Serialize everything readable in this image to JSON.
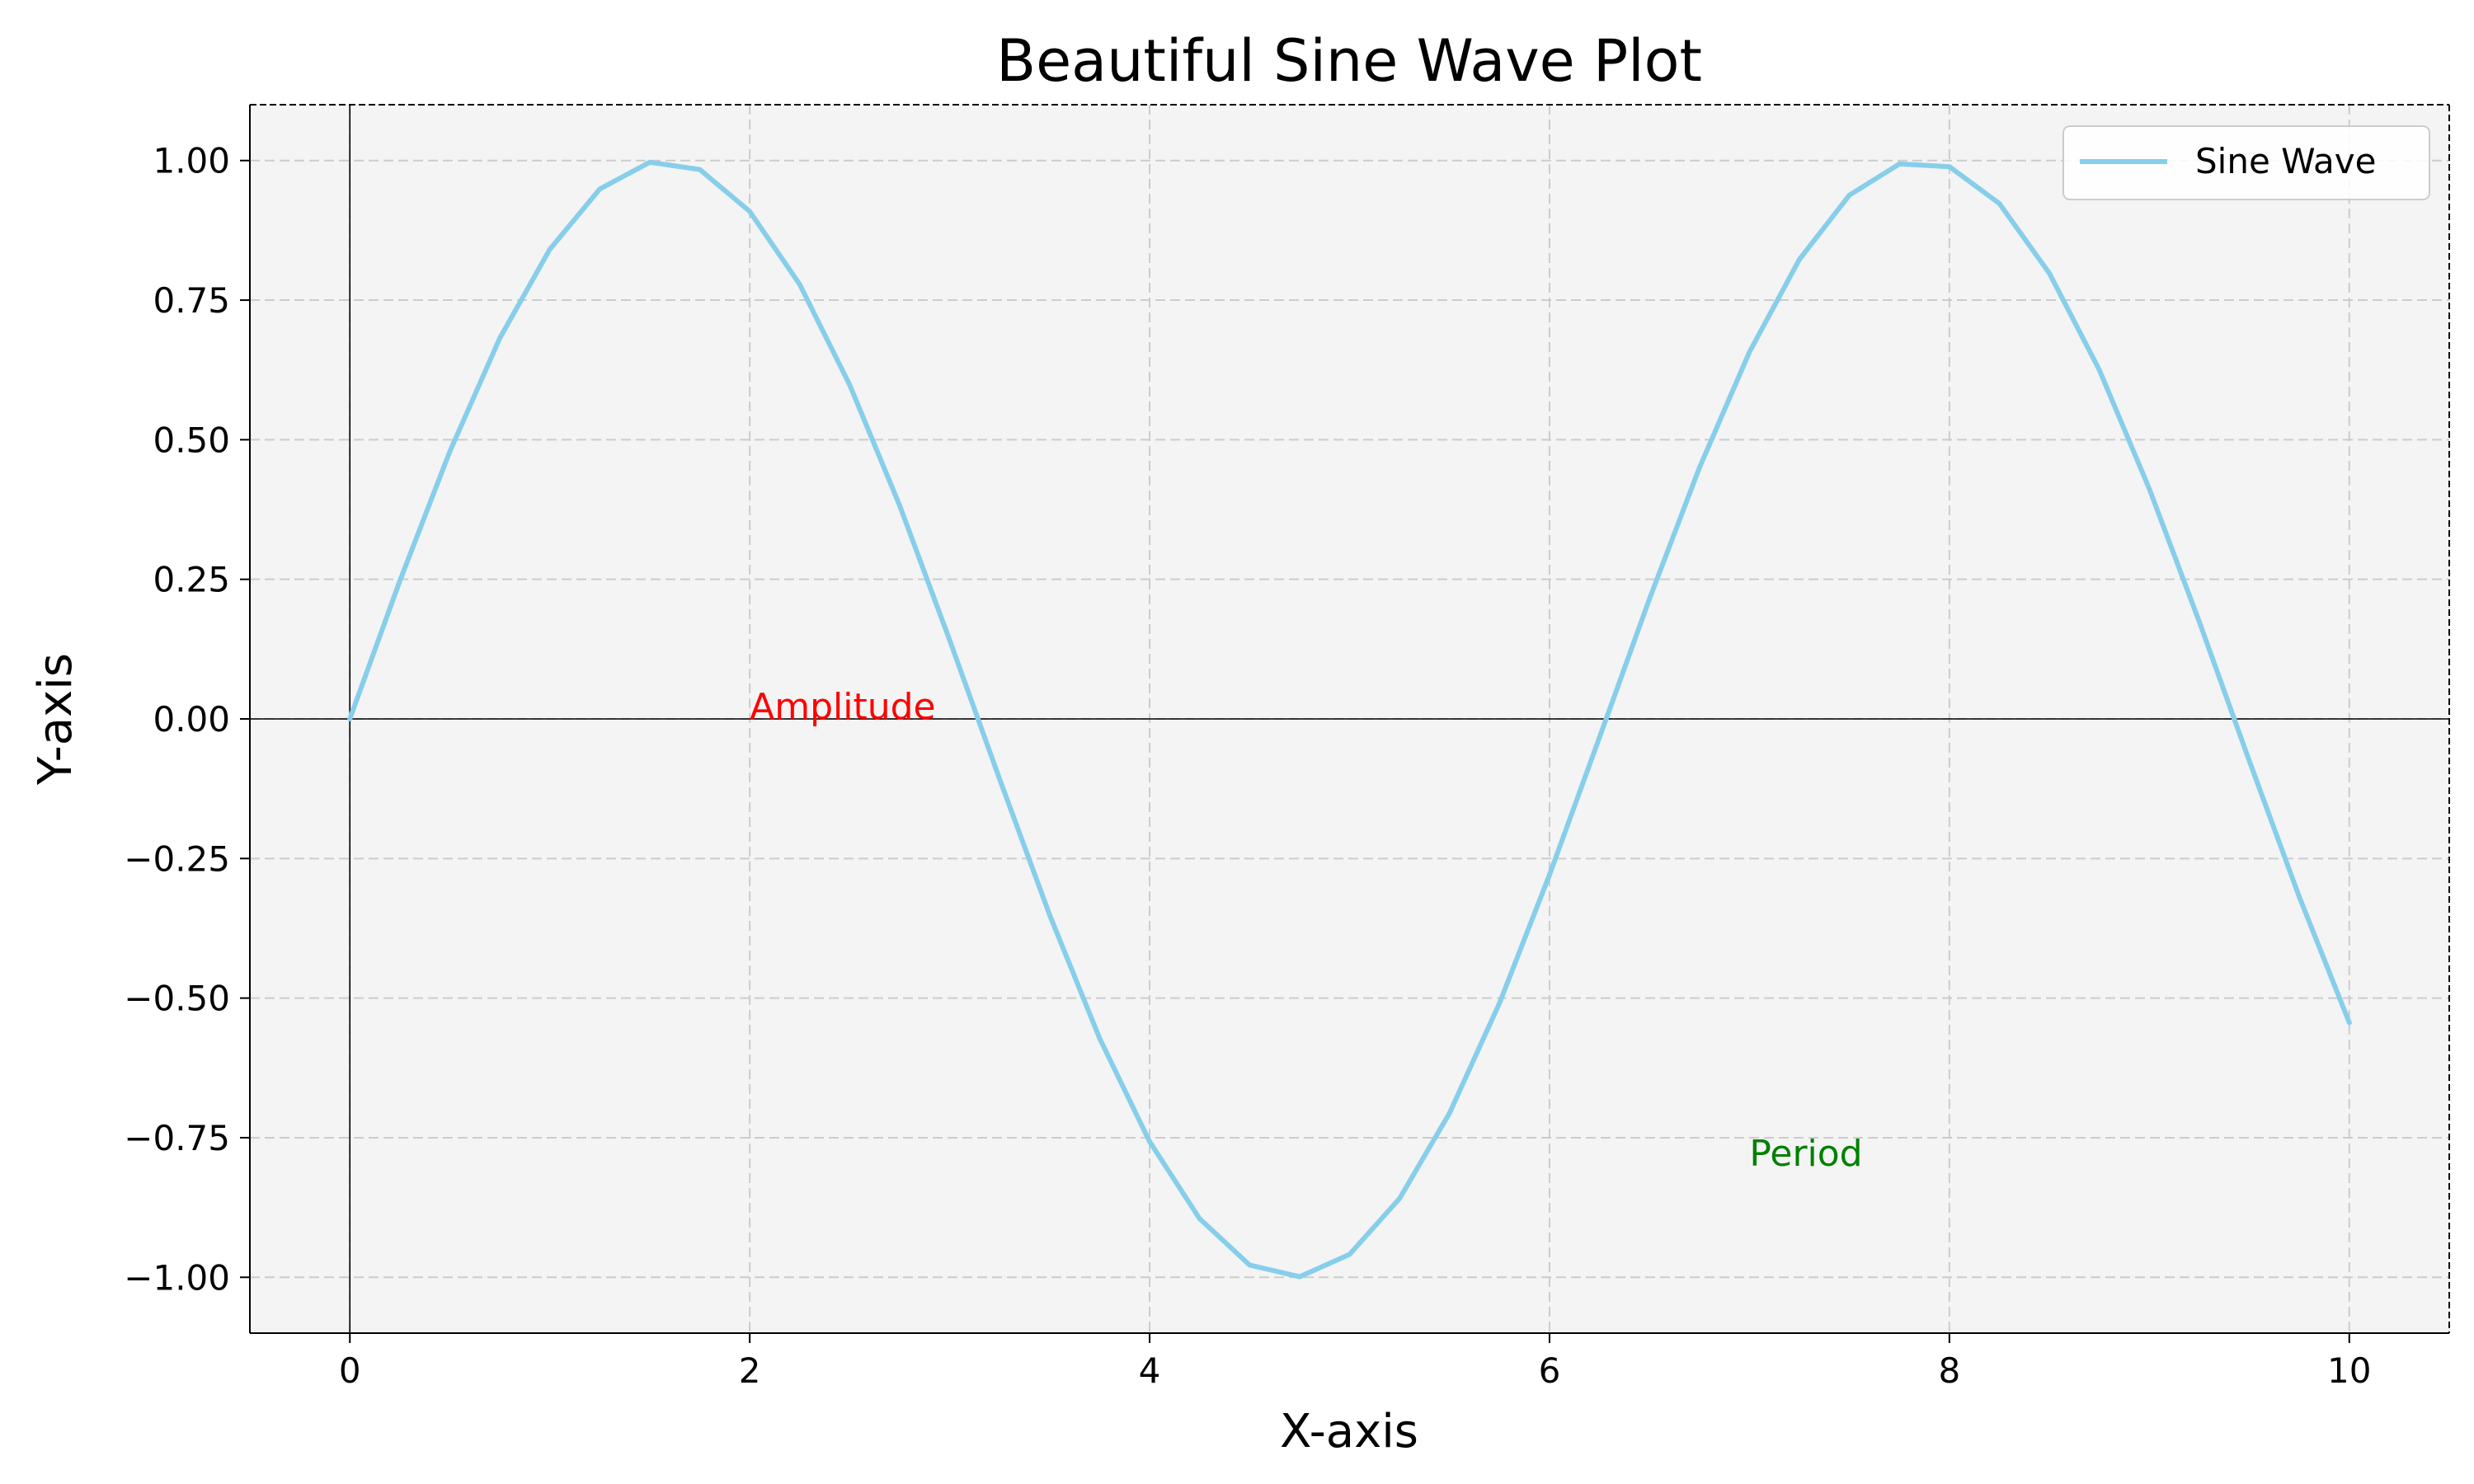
{
  "chart_data": {
    "type": "line",
    "title": "Beautiful Sine Wave Plot",
    "xlabel": "X-axis",
    "ylabel": "Y-axis",
    "xlim": [
      -0.5,
      10.5
    ],
    "ylim": [
      -1.1,
      1.1
    ],
    "xticks": [
      0,
      2,
      4,
      6,
      8,
      10
    ],
    "xtick_labels": [
      "0",
      "2",
      "4",
      "6",
      "8",
      "10"
    ],
    "yticks": [
      1.0,
      0.75,
      0.5,
      0.25,
      0.0,
      -0.25,
      -0.5,
      -0.75,
      -1.0
    ],
    "ytick_labels": [
      "1.00",
      "0.75",
      "0.50",
      "0.25",
      "0.00",
      "−0.25",
      "−0.50",
      "−0.75",
      "−1.00"
    ],
    "grid": true,
    "grid_style": "dashed",
    "reference_lines": {
      "x": 0,
      "y": 0
    },
    "legend_position": "top-right",
    "background_color": "#f4f4f4",
    "series": [
      {
        "name": "Sine Wave",
        "color": "#87ceeb",
        "x": [
          0,
          0.25,
          0.5,
          0.75,
          1,
          1.25,
          1.5,
          1.75,
          2,
          2.25,
          2.5,
          2.75,
          3,
          3.25,
          3.5,
          3.75,
          4,
          4.25,
          4.5,
          4.75,
          5,
          5.25,
          5.5,
          5.75,
          6,
          6.25,
          6.5,
          6.75,
          7,
          7.25,
          7.5,
          7.75,
          8,
          8.25,
          8.5,
          8.75,
          9,
          9.25,
          9.5,
          9.75,
          10
        ],
        "y": [
          0.0,
          0.247,
          0.479,
          0.682,
          0.841,
          0.949,
          0.997,
          0.984,
          0.909,
          0.778,
          0.598,
          0.382,
          0.141,
          -0.108,
          -0.351,
          -0.572,
          -0.757,
          -0.895,
          -0.978,
          -0.999,
          -0.959,
          -0.859,
          -0.706,
          -0.509,
          -0.279,
          -0.033,
          0.215,
          0.45,
          0.657,
          0.823,
          0.938,
          0.994,
          0.989,
          0.923,
          0.798,
          0.625,
          0.412,
          0.174,
          -0.075,
          -0.319,
          -0.544
        ]
      }
    ],
    "annotations": [
      {
        "text": "Amplitude",
        "x": 2.0,
        "y": 0.0,
        "color": "#ff0000"
      },
      {
        "text": "Period",
        "x": 7.0,
        "y": -0.8,
        "color": "#008000"
      }
    ]
  }
}
